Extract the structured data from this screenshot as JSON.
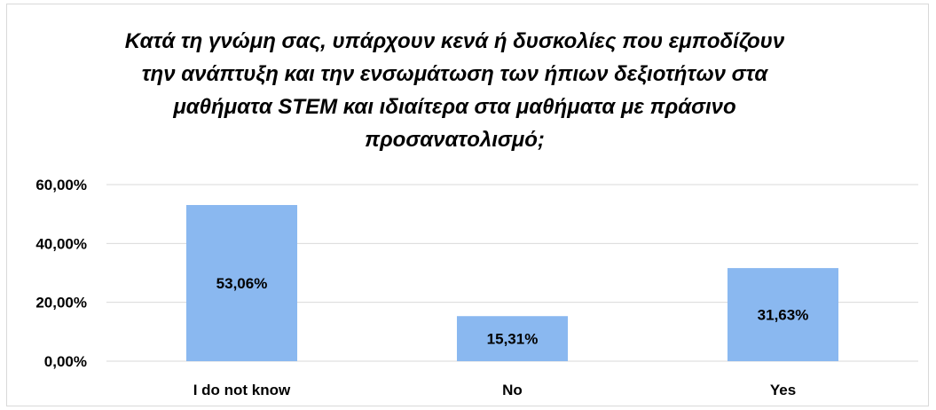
{
  "chart_data": {
    "type": "bar",
    "title": "Κατά τη γνώμη σας, υπάρχουν κενά ή δυσκολίες που εμποδίζουν την ανάπτυξη και την ενσωμάτωση των ήπιων δεξιοτήτων στα μαθήματα STEM και ιδιαίτερα στα μαθήματα με πράσινο προσανατολισμό;",
    "title_lines": [
      "Κατά τη γνώμη σας, υπάρχουν κενά ή δυσκολίες που εμποδίζουν",
      "την ανάπτυξη και την ενσωμάτωση των ήπιων δεξιοτήτων στα",
      "μαθήματα STEM και ιδιαίτερα στα μαθήματα με πράσινο",
      "προσανατολισμό;"
    ],
    "categories": [
      "I do not know",
      "No",
      "Yes"
    ],
    "values": [
      53.06,
      15.31,
      31.63
    ],
    "value_labels": [
      "53,06%",
      "15,31%",
      "31,63%"
    ],
    "xlabel": "",
    "ylabel": "",
    "ylim": [
      0,
      60
    ],
    "y_ticks": [
      0,
      20,
      40,
      60
    ],
    "y_tick_labels": [
      "0,00%",
      "20,00%",
      "40,00%",
      "60,00%"
    ],
    "grid": true,
    "legend": "none",
    "bar_color": "#8ab8f0",
    "grid_color": "#d9d9d9"
  }
}
